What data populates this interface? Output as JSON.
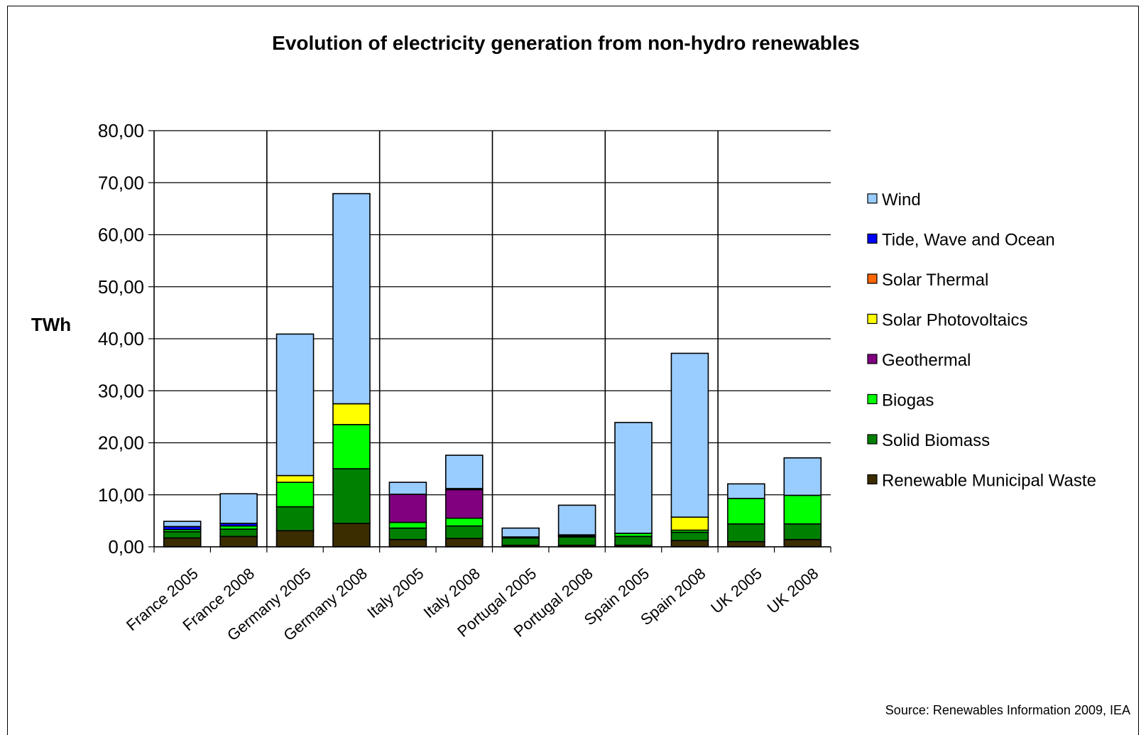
{
  "chart_data": {
    "type": "bar",
    "stacked": true,
    "title": "Evolution of electricity generation from non-hydro renewables",
    "ylabel": "TWh",
    "ylim": [
      0,
      80
    ],
    "yticks": [
      "0,00",
      "10,00",
      "20,00",
      "30,00",
      "40,00",
      "50,00",
      "60,00",
      "70,00",
      "80,00"
    ],
    "grid": true,
    "legend_position": "right",
    "source": "Source: Renewables Information 2009, IEA",
    "categories": [
      "France 2005",
      "France 2008",
      "Germany 2005",
      "Germany 2008",
      "Italy 2005",
      "Italy 2008",
      "Portugal 2005",
      "Portugal 2008",
      "Spain 2005",
      "Spain 2008",
      "UK 2005",
      "UK 2008"
    ],
    "series": [
      {
        "name": "Renewable Municipal Waste",
        "color": "#3B2D00",
        "values": [
          1.7,
          2.0,
          3.1,
          4.5,
          1.4,
          1.6,
          0.3,
          0.3,
          0.3,
          1.2,
          1.0,
          1.4
        ]
      },
      {
        "name": "Solid Biomass",
        "color": "#008000",
        "values": [
          1.2,
          1.4,
          4.6,
          10.5,
          2.2,
          2.4,
          1.4,
          1.6,
          1.7,
          1.6,
          3.4,
          3.0
        ]
      },
      {
        "name": "Biogas",
        "color": "#00FF00",
        "values": [
          0.4,
          0.6,
          4.7,
          8.5,
          1.1,
          1.5,
          0.1,
          0.2,
          0.6,
          0.4,
          4.9,
          5.5
        ]
      },
      {
        "name": "Geothermal",
        "color": "#800080",
        "values": [
          0.0,
          0.0,
          0.0,
          0.0,
          5.4,
          5.5,
          0.1,
          0.2,
          0.0,
          0.0,
          0.0,
          0.0
        ]
      },
      {
        "name": "Solar Photovoltaics",
        "color": "#FFFF00",
        "values": [
          0.0,
          0.0,
          1.3,
          4.0,
          0.0,
          0.2,
          0.0,
          0.0,
          0.0,
          2.5,
          0.0,
          0.0
        ]
      },
      {
        "name": "Solar Thermal",
        "color": "#FF6600",
        "values": [
          0.0,
          0.0,
          0.0,
          0.0,
          0.0,
          0.0,
          0.0,
          0.0,
          0.0,
          0.0,
          0.0,
          0.0
        ]
      },
      {
        "name": "Tide, Wave and Ocean",
        "color": "#0000FF",
        "values": [
          0.6,
          0.5,
          0.0,
          0.0,
          0.0,
          0.0,
          0.0,
          0.0,
          0.0,
          0.0,
          0.0,
          0.0
        ]
      },
      {
        "name": "Wind",
        "color": "#99CCFF",
        "values": [
          1.0,
          5.7,
          27.2,
          40.4,
          2.3,
          6.4,
          1.7,
          5.7,
          21.3,
          31.5,
          2.8,
          7.2
        ]
      }
    ]
  }
}
